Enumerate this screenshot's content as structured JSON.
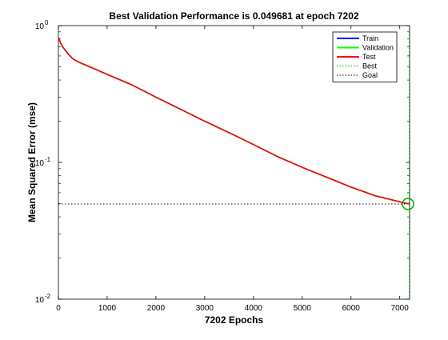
{
  "chart_data": {
    "type": "line",
    "title": "Best Validation Performance is 0.049681 at epoch 7202",
    "xlabel": "7202 Epochs",
    "ylabel": "Mean Squared Error  (mse)",
    "xlim": [
      0,
      7202
    ],
    "ylim": [
      0.01,
      1
    ],
    "yscale": "log",
    "x_ticks": [
      0,
      1000,
      2000,
      3000,
      4000,
      5000,
      6000,
      7000
    ],
    "y_ticks": [
      {
        "value": 1,
        "base": "10",
        "exp": "0"
      },
      {
        "value": 0.1,
        "base": "10",
        "exp": "-1"
      },
      {
        "value": 0.01,
        "base": "10",
        "exp": "-2"
      }
    ],
    "grid": false,
    "legend_position": "top-right",
    "series": [
      {
        "name": "Train",
        "color": "#0000ff",
        "style": "solid",
        "x": [
          0,
          50,
          100,
          200,
          300,
          400,
          500,
          700,
          1000,
          1500,
          2000,
          2500,
          3000,
          3500,
          4000,
          4500,
          5000,
          5500,
          6000,
          6500,
          7000,
          7202
        ],
        "y": [
          0.82,
          0.74,
          0.69,
          0.62,
          0.57,
          0.545,
          0.525,
          0.49,
          0.44,
          0.37,
          0.3,
          0.245,
          0.2,
          0.165,
          0.135,
          0.11,
          0.092,
          0.078,
          0.066,
          0.057,
          0.0515,
          0.0497
        ]
      },
      {
        "name": "Validation",
        "color": "#00ff00",
        "style": "solid",
        "x": [
          0,
          50,
          100,
          200,
          300,
          400,
          500,
          700,
          1000,
          1500,
          2000,
          2500,
          3000,
          3500,
          4000,
          4500,
          5000,
          5500,
          6000,
          6500,
          7000,
          7202
        ],
        "y": [
          0.82,
          0.74,
          0.69,
          0.62,
          0.57,
          0.545,
          0.525,
          0.49,
          0.44,
          0.37,
          0.3,
          0.245,
          0.2,
          0.165,
          0.135,
          0.11,
          0.092,
          0.078,
          0.066,
          0.057,
          0.0515,
          0.0497
        ]
      },
      {
        "name": "Test",
        "color": "#ff0000",
        "style": "solid",
        "x": [
          0,
          50,
          100,
          200,
          300,
          400,
          500,
          700,
          1000,
          1500,
          2000,
          2500,
          3000,
          3500,
          4000,
          4500,
          5000,
          5500,
          6000,
          6500,
          7000,
          7202
        ],
        "y": [
          0.82,
          0.74,
          0.69,
          0.62,
          0.57,
          0.545,
          0.525,
          0.49,
          0.44,
          0.37,
          0.3,
          0.245,
          0.2,
          0.165,
          0.135,
          0.11,
          0.092,
          0.078,
          0.066,
          0.057,
          0.0515,
          0.0497
        ]
      },
      {
        "name": "Best",
        "color": "#00aa00",
        "style": "dotted"
      },
      {
        "name": "Goal",
        "color": "#000000",
        "style": "dotted",
        "value": 0.049681
      }
    ],
    "best": {
      "epoch": 7202,
      "value": 0.049681
    }
  }
}
